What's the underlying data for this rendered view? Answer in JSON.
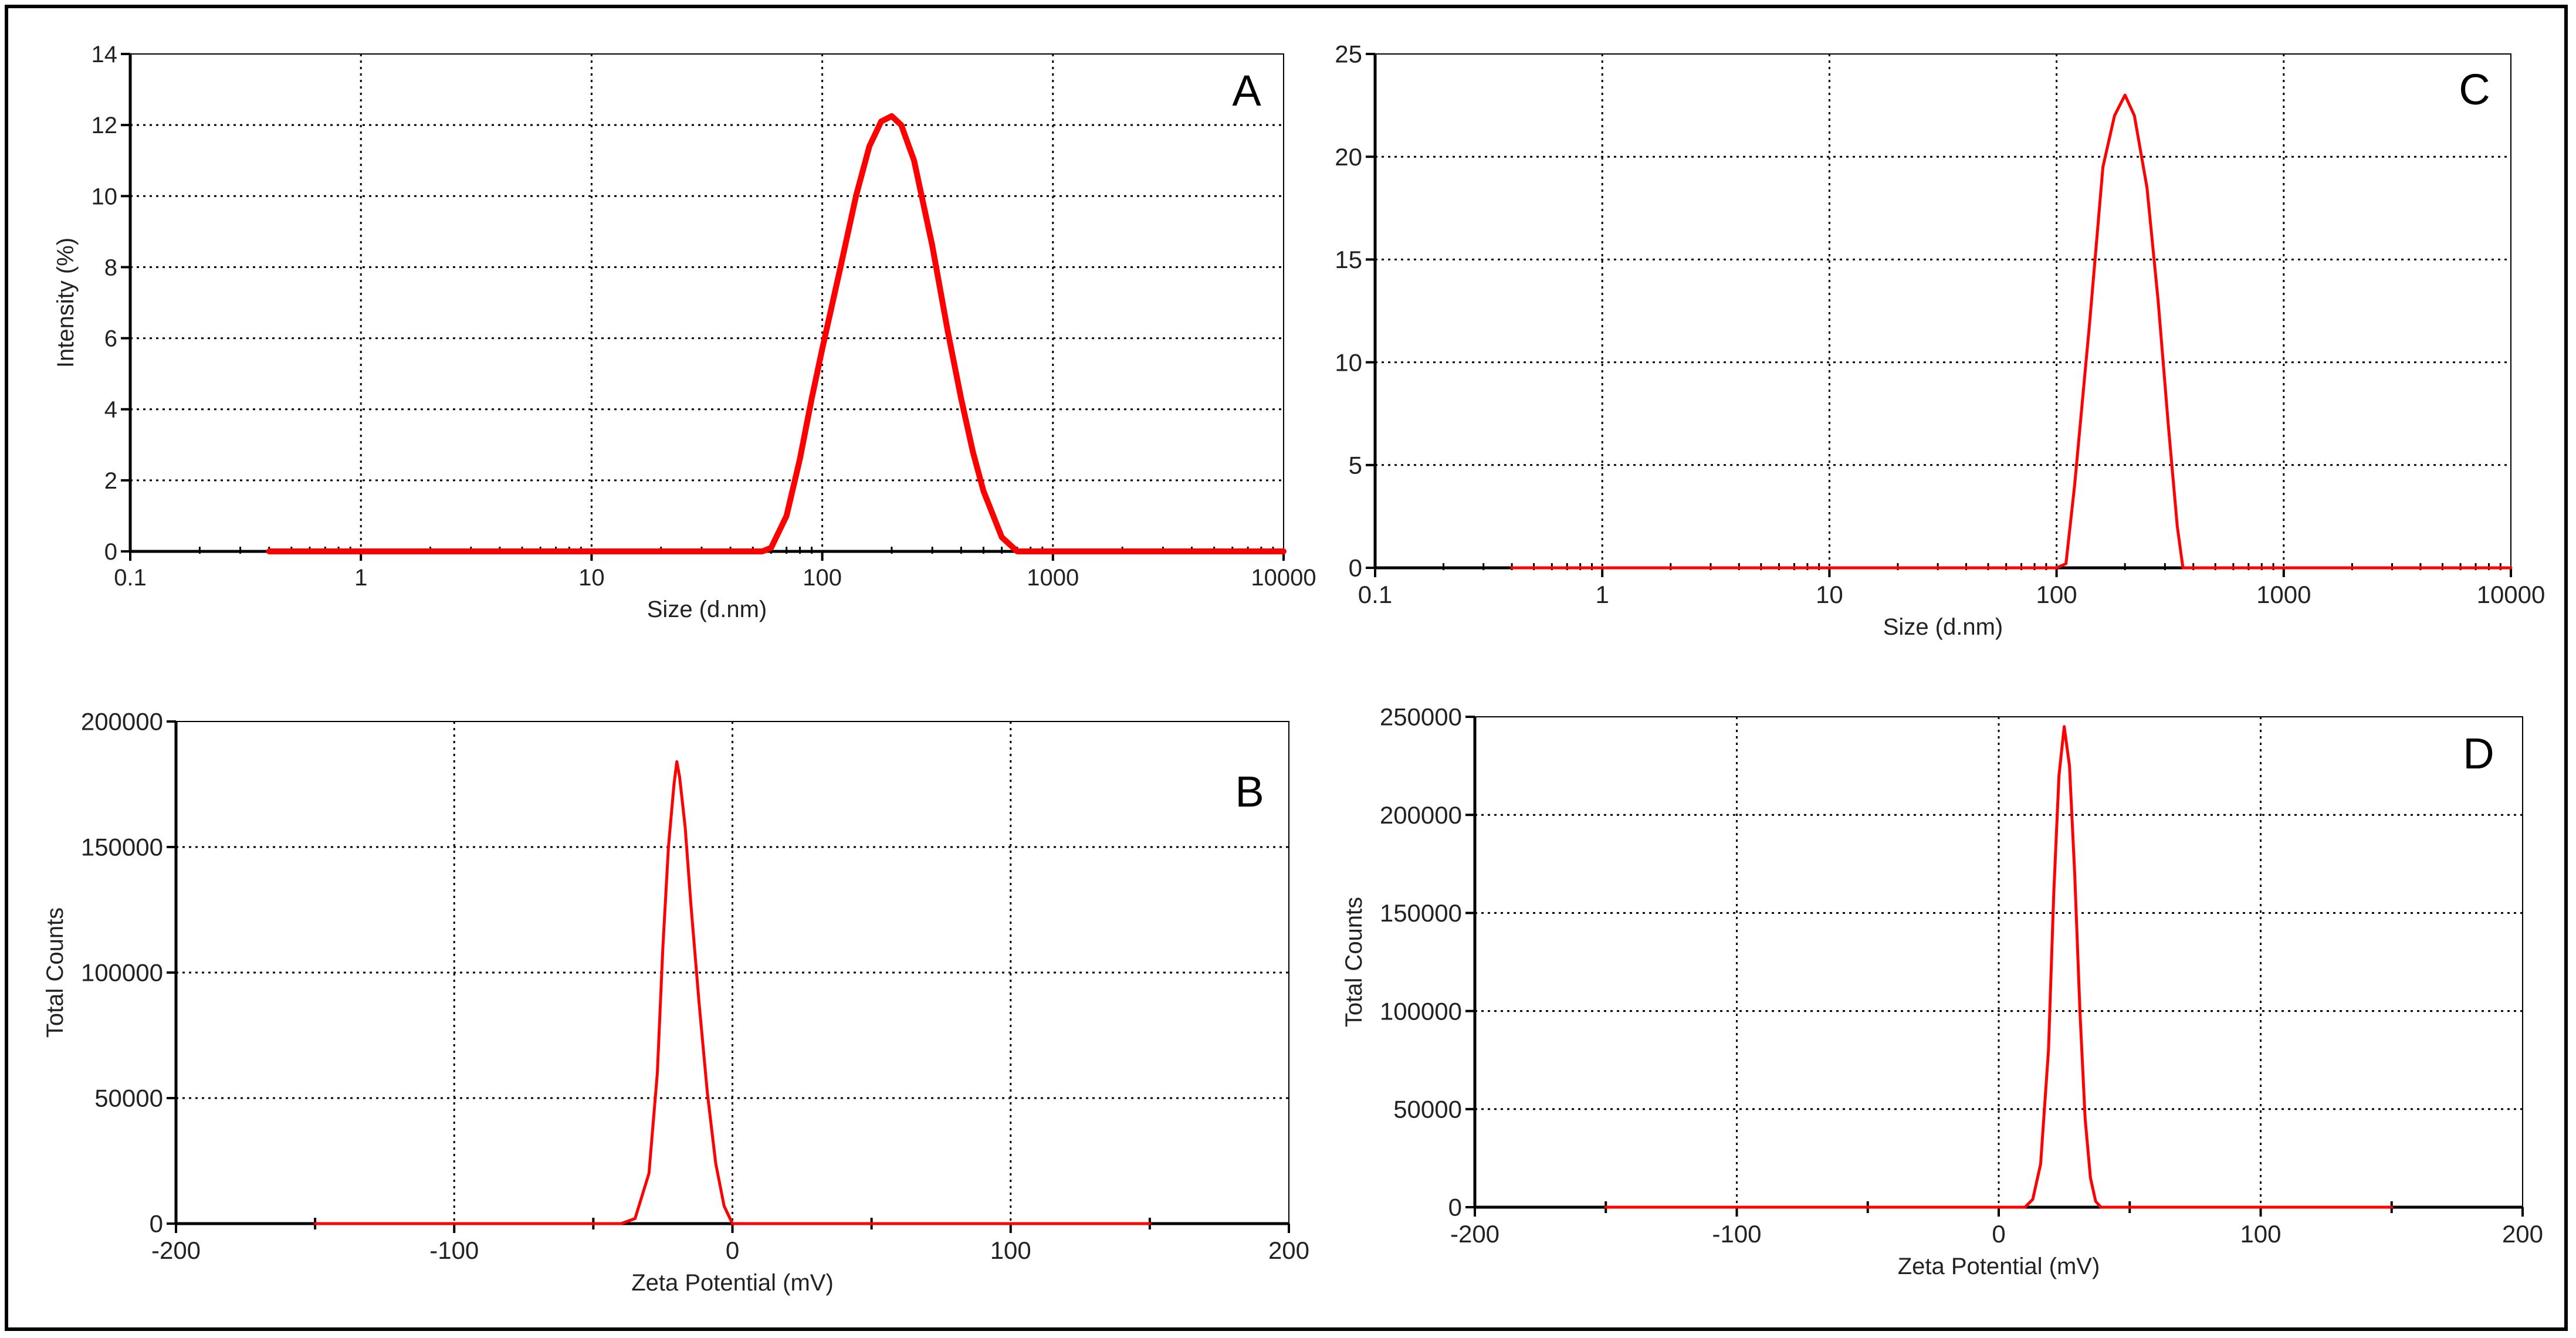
{
  "figure": {
    "border_color": "#000000",
    "line_color": "#ff0000",
    "grid_color": "#000000"
  },
  "chart_data": [
    {
      "panel": "A",
      "type": "line",
      "xlabel": "Size (d.nm)",
      "ylabel": "Intensity (%)",
      "xscale": "log",
      "xlim": [
        0.1,
        10000
      ],
      "ylim": [
        0,
        14
      ],
      "xticks": [
        0.1,
        1,
        10,
        100,
        1000,
        10000
      ],
      "xtick_labels": [
        "0.1",
        "1",
        "10",
        "100",
        "1000",
        "10000"
      ],
      "yticks": [
        0,
        2,
        4,
        6,
        8,
        10,
        12,
        14
      ],
      "ytick_labels": [
        "0",
        "2",
        "4",
        "6",
        "8",
        "10",
        "12",
        "14"
      ],
      "grid": true,
      "series": [
        {
          "color": "#ff0000",
          "x": [
            0.4,
            1,
            10,
            55,
            60,
            70,
            80,
            90,
            100,
            120,
            140,
            160,
            180,
            200,
            220,
            250,
            300,
            350,
            400,
            450,
            500,
            600,
            700,
            1000,
            10000
          ],
          "y": [
            0,
            0,
            0,
            0,
            0.1,
            1.0,
            2.6,
            4.3,
            5.7,
            8.0,
            10.0,
            11.4,
            12.1,
            12.25,
            12.0,
            11.0,
            8.6,
            6.2,
            4.3,
            2.8,
            1.7,
            0.4,
            0,
            0,
            0
          ]
        }
      ]
    },
    {
      "panel": "B",
      "type": "line",
      "xlabel": "Zeta Potential (mV)",
      "ylabel": "Total Counts",
      "xlim": [
        -200,
        200
      ],
      "ylim": [
        0,
        200000
      ],
      "xticks": [
        -200,
        -100,
        0,
        100,
        200
      ],
      "xtick_labels": [
        "-200",
        "-100",
        "0",
        "100",
        "200"
      ],
      "yticks": [
        0,
        50000,
        100000,
        150000,
        200000
      ],
      "ytick_labels": [
        "0",
        "50000",
        "100000",
        "150000",
        "200000"
      ],
      "grid": true,
      "series": [
        {
          "color": "#ff0000",
          "x": [
            -150,
            -40,
            -35,
            -30,
            -27,
            -25,
            -23,
            -21,
            -20,
            -19,
            -17,
            -15,
            -12,
            -9,
            -6,
            -3,
            0,
            150
          ],
          "y": [
            0,
            0,
            2000,
            20000,
            60000,
            110000,
            150000,
            175000,
            184000,
            178000,
            158000,
            128000,
            88000,
            52000,
            24000,
            7000,
            0,
            0
          ]
        }
      ]
    },
    {
      "panel": "C",
      "type": "line",
      "xlabel": "Size (d.nm)",
      "ylabel": "",
      "xscale": "log",
      "xlim": [
        0.1,
        10000
      ],
      "ylim": [
        0,
        25
      ],
      "xticks": [
        0.1,
        1,
        10,
        100,
        1000,
        10000
      ],
      "xtick_labels": [
        "0.1",
        "1",
        "10",
        "100",
        "1000",
        "10000"
      ],
      "yticks": [
        0,
        5,
        10,
        15,
        20,
        25
      ],
      "ytick_labels": [
        "0",
        "5",
        "10",
        "15",
        "20",
        "25"
      ],
      "grid": true,
      "series": [
        {
          "color": "#ff0000",
          "x": [
            0.4,
            1,
            10,
            100,
            110,
            120,
            140,
            160,
            180,
            200,
            220,
            250,
            280,
            310,
            340,
            360,
            10000
          ],
          "y": [
            0,
            0,
            0,
            0,
            0.2,
            4.0,
            12.0,
            19.5,
            22.0,
            23.0,
            22.0,
            18.5,
            13.0,
            7.0,
            2.0,
            0,
            0
          ]
        }
      ]
    },
    {
      "panel": "D",
      "type": "line",
      "xlabel": "Zeta Potential (mV)",
      "ylabel": "Total Counts",
      "xlim": [
        -200,
        200
      ],
      "ylim": [
        0,
        250000
      ],
      "xticks": [
        -200,
        -100,
        0,
        100,
        200
      ],
      "xtick_labels": [
        "-200",
        "-100",
        "0",
        "100",
        "200"
      ],
      "yticks": [
        0,
        50000,
        100000,
        150000,
        200000,
        250000
      ],
      "ytick_labels": [
        "0",
        "50000",
        "100000",
        "150000",
        "200000",
        "250000"
      ],
      "grid": true,
      "series": [
        {
          "color": "#ff0000",
          "x": [
            -150,
            10,
            13,
            16,
            19,
            21,
            23,
            25,
            27,
            29,
            31,
            33,
            35,
            37,
            39,
            150
          ],
          "y": [
            0,
            0,
            4000,
            22000,
            80000,
            160000,
            220000,
            245000,
            225000,
            170000,
            100000,
            45000,
            15000,
            3000,
            0,
            0
          ]
        }
      ]
    }
  ]
}
